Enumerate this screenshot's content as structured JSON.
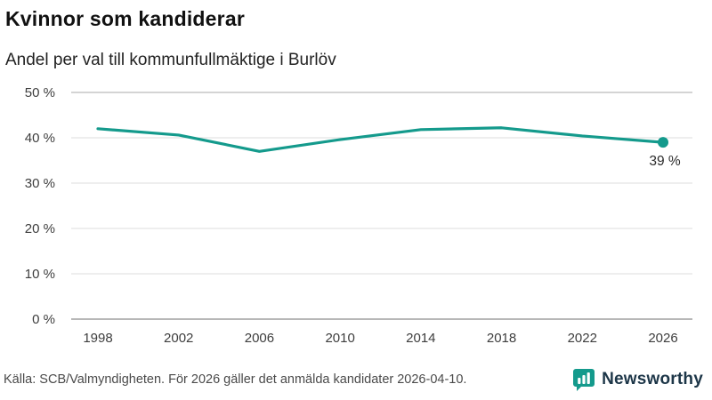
{
  "title": "Kvinnor som kandiderar",
  "subtitle": "Andel per val till kommunfullmäktige i Burlöv",
  "footer": {
    "source": "Källa: SCB/Valmyndigheten. För 2026 gäller det anmälda kandidater 2026-04-10.",
    "brand": "Newsworthy"
  },
  "colors": {
    "line": "#149a8c",
    "grid": "#dedede",
    "grid_edge_top": "#a9a9a9",
    "grid_edge_bottom": "#6f6f6f",
    "tick_text": "#3d3d3d",
    "brand_teal": "#149a8c"
  },
  "chart_data": {
    "type": "line",
    "title": "Kvinnor som kandiderar",
    "subtitle": "Andel per val till kommunfullmäktige i Burlöv",
    "x": [
      1998,
      2002,
      2006,
      2010,
      2014,
      2018,
      2022,
      2026
    ],
    "xtick_labels": [
      "1998",
      "2002",
      "2006",
      "2010",
      "2014",
      "2018",
      "2022",
      "2026"
    ],
    "values": [
      42,
      40.6,
      37,
      39.6,
      41.8,
      42.2,
      40.4,
      39
    ],
    "ylim": [
      0,
      50
    ],
    "yticks": [
      0,
      10,
      20,
      30,
      40,
      50
    ],
    "ytick_labels": [
      "0 %",
      "10 %",
      "20 %",
      "30 %",
      "40 %",
      "50 %"
    ],
    "grid": true,
    "legend": "none",
    "end_label": "39 %",
    "marker_last_point": true
  }
}
